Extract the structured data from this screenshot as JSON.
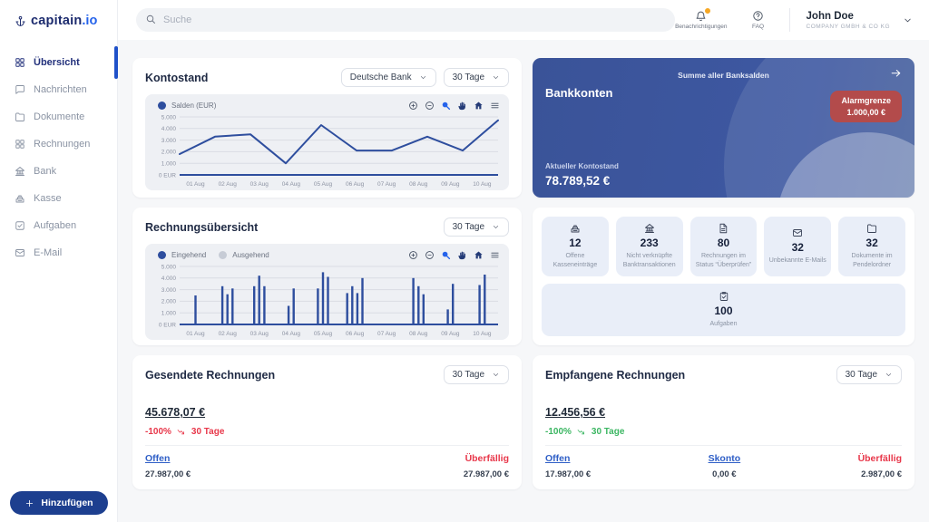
{
  "brand": {
    "name_main": "capitain",
    "name_suffix": ".io"
  },
  "colors": {
    "primary_navy": "#1c2b6e",
    "accent_blue": "#2563eb",
    "chart_blue": "#2e4e9e",
    "bank_card_navy": "#3b559b",
    "alarm_red": "#b34b4b",
    "trend_red": "#e8374a",
    "trend_green": "#3bb662",
    "link_blue": "#2f5fc7",
    "badge_orange": "#f6a723",
    "tile_bg": "#e9eef8",
    "panel_bg": "#eef0f4"
  },
  "topbar": {
    "search_placeholder": "Suche",
    "notifications_label": "Benachrichtigungen",
    "faq_label": "FAQ",
    "user_name": "John Doe",
    "user_company": "COMPANY GMBH & CO KG"
  },
  "sidebar": {
    "items": [
      {
        "id": "uebersicht",
        "label": "Übersicht",
        "icon": "grid",
        "active": true
      },
      {
        "id": "nachrichten",
        "label": "Nachrichten",
        "icon": "chat",
        "active": false
      },
      {
        "id": "dokumente",
        "label": "Dokumente",
        "icon": "folder",
        "active": false
      },
      {
        "id": "rechnungen",
        "label": "Rechnungen",
        "icon": "grid",
        "active": false
      },
      {
        "id": "bank",
        "label": "Bank",
        "icon": "bank",
        "active": false
      },
      {
        "id": "kasse",
        "label": "Kasse",
        "icon": "register",
        "active": false
      },
      {
        "id": "aufgaben",
        "label": "Aufgaben",
        "icon": "check-square",
        "active": false
      },
      {
        "id": "email",
        "label": "E-Mail",
        "icon": "mail",
        "active": false
      }
    ],
    "add_button_label": "Hinzufügen"
  },
  "kontostand": {
    "title": "Kontostand",
    "bank_select": "Deutsche Bank",
    "range_select": "30 Tage",
    "legend": "Salden (EUR)"
  },
  "bankkonten": {
    "subtitle": "Summe aller Banksalden",
    "title": "Bankkonten",
    "alarm_label": "Alarmgrenze",
    "alarm_value": "1.000,00 €",
    "balance_label": "Aktueller Kontostand",
    "balance_value": "78.789,52 €"
  },
  "rechnungsuebersicht": {
    "title": "Rechnungsübersicht",
    "range_select": "30 Tage",
    "legend_in": "Eingehend",
    "legend_out": "Ausgehend"
  },
  "stats": [
    {
      "icon": "register",
      "value": "12",
      "label": "Offene Kasseneinträge"
    },
    {
      "icon": "bank",
      "value": "233",
      "label": "Nicht verknüpfte Banktransaktionen"
    },
    {
      "icon": "doc",
      "value": "80",
      "label": "Rechnungen im Status “Überprüfen”"
    },
    {
      "icon": "mail",
      "value": "32",
      "label": "Unbekannte E-Mails"
    },
    {
      "icon": "folder",
      "value": "32",
      "label": "Dokumente im Pendelordner"
    }
  ],
  "tasks_tile": {
    "icon": "task",
    "value": "100",
    "label": "Aufgaben"
  },
  "gesendete": {
    "title": "Gesendete Rechnungen",
    "range_select": "30 Tage",
    "total": "45.678,07 €",
    "trend_value": "-100%",
    "trend_period": "30 Tage",
    "trend_direction": "down",
    "trend_color": "red",
    "cols": [
      {
        "key": "offen",
        "label": "Offen",
        "value": "27.987,00 €",
        "type": "link"
      },
      {
        "key": "ueberfaellig",
        "label": "Überfällig",
        "value": "27.987,00 €",
        "type": "danger"
      }
    ]
  },
  "empfangene": {
    "title": "Empfangene Rechnungen",
    "range_select": "30 Tage",
    "total": "12.456,56 €",
    "trend_value": "-100%",
    "trend_period": "30 Tage",
    "trend_direction": "down",
    "trend_color": "green",
    "cols": [
      {
        "key": "offen",
        "label": "Offen",
        "value": "17.987,00 €",
        "type": "link"
      },
      {
        "key": "skonto",
        "label": "Skonto",
        "value": "0,00 €",
        "type": "link"
      },
      {
        "key": "ueberfaellig",
        "label": "Überfällig",
        "value": "2.987,00 €",
        "type": "danger"
      }
    ]
  },
  "chart_data": [
    {
      "type": "line",
      "title": "Kontostand — Salden (EUR)",
      "series_name": "Salden (EUR)",
      "x": [
        "01 Aug",
        "02 Aug",
        "03 Aug",
        "04 Aug",
        "05 Aug",
        "06 Aug",
        "07 Aug",
        "08 Aug",
        "09 Aug",
        "10 Aug"
      ],
      "values": [
        1800,
        3300,
        3500,
        1000,
        4300,
        2100,
        2100,
        3300,
        2100,
        4700
      ],
      "ylim": [
        0,
        5000
      ],
      "yticks": [
        "5.000",
        "4.000",
        "3.000",
        "2.000",
        "1.000",
        "0 EUR"
      ],
      "line_color": "#2e4e9e",
      "grid": true,
      "legend_position": "top-left"
    },
    {
      "type": "bar",
      "title": "Rechnungsübersicht",
      "categories": [
        "01 Aug",
        "02 Aug",
        "03 Aug",
        "04 Aug",
        "05 Aug",
        "06 Aug",
        "07 Aug",
        "08 Aug",
        "09 Aug",
        "10 Aug"
      ],
      "series": [
        {
          "name": "Eingehend",
          "color": "#2e4e9e",
          "clusters": [
            [
              2500
            ],
            [
              3300,
              2600,
              3100
            ],
            [
              3300,
              4200,
              3300
            ],
            [
              1600,
              3100
            ],
            [
              3100,
              4500,
              4100
            ],
            [
              2700,
              3300,
              2700,
              4000
            ],
            [],
            [
              4000,
              3300,
              2600
            ],
            [
              1300,
              3500
            ],
            [
              3400,
              4300
            ]
          ]
        },
        {
          "name": "Ausgehend",
          "color": "#c7ccd6",
          "clusters": [
            [],
            [],
            [],
            [],
            [],
            [],
            [],
            [],
            [],
            []
          ]
        }
      ],
      "ylim": [
        0,
        5000
      ],
      "yticks": [
        "5.000",
        "4.000",
        "3.000",
        "2.000",
        "1.000",
        "0 EUR"
      ],
      "grid": true,
      "legend_position": "top-left"
    }
  ]
}
